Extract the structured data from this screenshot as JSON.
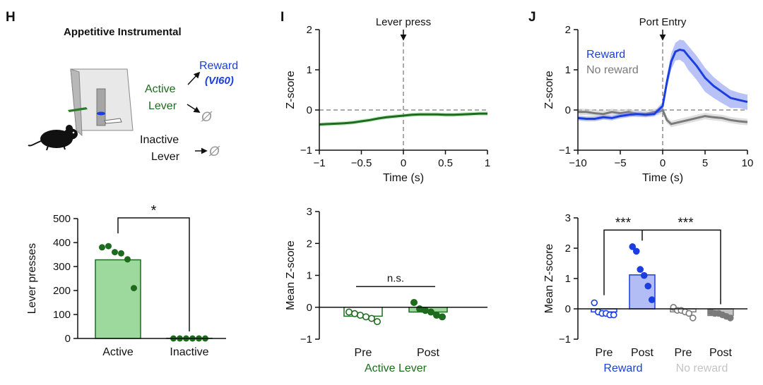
{
  "colors": {
    "green": "#1d6b1d",
    "green_light": "#9dd89d",
    "blue": "#1a3ee0",
    "blue_fill": "#b3bdf5",
    "gray": "#7a7a7a",
    "gray_light": "#c4c4c4",
    "black": "#111111"
  },
  "panel_h": {
    "letter": "H",
    "title": "Appetitive Instrumental",
    "schematic": {
      "reward_label": "Reward",
      "schedule_label": "(VI60)",
      "active_label_1": "Active",
      "active_label_2": "Lever",
      "inactive_label_1": "Inactive",
      "inactive_label_2": "Lever",
      "null_symbol": "Ø",
      "icons": [
        "mouse-icon",
        "operant-box-icon",
        "arrow-icon"
      ]
    }
  },
  "panel_i": {
    "letter": "I"
  },
  "panel_j": {
    "letter": "J"
  },
  "chart_data": [
    {
      "id": "h_bar",
      "type": "bar",
      "categories": [
        "Active",
        "Inactive"
      ],
      "values": [
        328,
        0
      ],
      "points": [
        [
          380,
          385,
          360,
          355,
          330,
          210
        ],
        [
          0,
          0,
          0,
          0,
          0,
          0
        ]
      ],
      "ylabel": "Lever presses",
      "xlabel": "",
      "ylim": [
        0,
        500
      ],
      "yticks": [
        0,
        100,
        200,
        300,
        400,
        500
      ],
      "significance": "*"
    },
    {
      "id": "i_line",
      "type": "line",
      "title": "Lever press",
      "xlabel": "Time (s)",
      "ylabel": "Z-score",
      "xlim": [
        -1,
        1
      ],
      "ylim": [
        -1,
        2
      ],
      "xticks": [
        -1,
        -0.5,
        0,
        0.5,
        1
      ],
      "xtick_labels": [
        "−1",
        "−0.5",
        "0",
        "0.5",
        "1"
      ],
      "yticks": [
        -1,
        0,
        1,
        2
      ],
      "ytick_labels": [
        "−1",
        "0",
        "1",
        "2"
      ],
      "series": [
        {
          "name": "Active Lever",
          "x": [
            -1,
            -0.9,
            -0.8,
            -0.7,
            -0.6,
            -0.5,
            -0.4,
            -0.3,
            -0.2,
            -0.1,
            0,
            0.1,
            0.2,
            0.3,
            0.4,
            0.5,
            0.6,
            0.7,
            0.8,
            0.9,
            1
          ],
          "y": [
            -0.36,
            -0.35,
            -0.34,
            -0.33,
            -0.31,
            -0.28,
            -0.25,
            -0.21,
            -0.18,
            -0.16,
            -0.14,
            -0.12,
            -0.11,
            -0.11,
            -0.11,
            -0.12,
            -0.12,
            -0.11,
            -0.1,
            -0.09,
            -0.09
          ],
          "err": 0.05
        }
      ]
    },
    {
      "id": "i_bar",
      "type": "bar",
      "categories": [
        "Pre",
        "Post"
      ],
      "values": [
        -0.28,
        -0.15
      ],
      "points": [
        [
          -0.15,
          -0.2,
          -0.25,
          -0.3,
          -0.35,
          -0.45
        ],
        [
          0.15,
          -0.05,
          -0.1,
          -0.15,
          -0.25,
          -0.3
        ]
      ],
      "ylabel": "Mean Z-score",
      "group_label": "Active Lever",
      "ylim": [
        -1,
        3
      ],
      "yticks": [
        -1,
        0,
        1,
        2,
        3
      ],
      "ytick_labels": [
        "−1",
        "0",
        "1",
        "2",
        "3"
      ],
      "significance": "n.s."
    },
    {
      "id": "j_line",
      "type": "line",
      "title": "Port Entry",
      "xlabel": "Time (s)",
      "ylabel": "Z-score",
      "xlim": [
        -10,
        10
      ],
      "ylim": [
        -1,
        2
      ],
      "xticks": [
        -10,
        -5,
        0,
        5,
        10
      ],
      "xtick_labels": [
        "−10",
        "−5",
        "0",
        "5",
        "10"
      ],
      "yticks": [
        -1,
        0,
        1,
        2
      ],
      "ytick_labels": [
        "−1",
        "0",
        "1",
        "2"
      ],
      "series": [
        {
          "name": "Reward",
          "x": [
            -10,
            -9,
            -8,
            -7,
            -6,
            -5,
            -4,
            -3,
            -2,
            -1,
            -0.5,
            0,
            0.5,
            1,
            1.5,
            2,
            2.5,
            3,
            4,
            5,
            6,
            7,
            8,
            9,
            10
          ],
          "y": [
            -0.2,
            -0.22,
            -0.22,
            -0.18,
            -0.2,
            -0.15,
            -0.12,
            -0.1,
            -0.12,
            -0.1,
            0.0,
            0.1,
            0.7,
            1.2,
            1.45,
            1.5,
            1.48,
            1.35,
            1.1,
            0.8,
            0.6,
            0.45,
            0.3,
            0.25,
            0.2
          ],
          "err_pos": [
            0.06,
            0.06,
            0.06,
            0.06,
            0.06,
            0.06,
            0.06,
            0.06,
            0.06,
            0.06,
            0.08,
            0.1,
            0.15,
            0.2,
            0.22,
            0.25,
            0.25,
            0.25,
            0.25,
            0.25,
            0.22,
            0.2,
            0.2,
            0.18,
            0.18
          ],
          "err_neg": [
            0.06,
            0.06,
            0.06,
            0.06,
            0.06,
            0.06,
            0.06,
            0.06,
            0.06,
            0.06,
            0.08,
            0.1,
            0.15,
            0.2,
            0.22,
            0.25,
            0.3,
            0.35,
            0.35,
            0.35,
            0.3,
            0.28,
            0.25,
            0.2,
            0.2
          ]
        },
        {
          "name": "No reward",
          "x": [
            -10,
            -9,
            -8,
            -7,
            -6,
            -5,
            -4,
            -3,
            -2,
            -1,
            -0.5,
            0,
            0.5,
            1,
            2,
            3,
            4,
            5,
            6,
            7,
            8,
            9,
            10
          ],
          "y": [
            -0.05,
            -0.05,
            -0.08,
            -0.1,
            -0.05,
            -0.08,
            -0.05,
            -0.1,
            -0.1,
            -0.05,
            -0.05,
            0.0,
            -0.25,
            -0.35,
            -0.3,
            -0.25,
            -0.2,
            -0.15,
            -0.18,
            -0.2,
            -0.25,
            -0.28,
            -0.3
          ],
          "err": 0.08
        }
      ]
    },
    {
      "id": "j_bar",
      "type": "bar",
      "categories": [
        "Pre",
        "Post",
        "Pre",
        "Post"
      ],
      "group_labels": [
        "Reward",
        "No reward"
      ],
      "values": [
        -0.1,
        1.12,
        -0.1,
        -0.22
      ],
      "points": [
        [
          0.2,
          -0.1,
          -0.15,
          -0.15,
          -0.2,
          -0.2
        ],
        [
          2.05,
          1.9,
          1.3,
          1.1,
          0.75,
          0.3
        ],
        [
          0.05,
          -0.05,
          -0.05,
          -0.1,
          -0.15,
          -0.3
        ],
        [
          -0.1,
          -0.15,
          -0.15,
          -0.2,
          -0.25,
          -0.3
        ]
      ],
      "ylabel": "Mean Z-score",
      "ylim": [
        -1,
        3
      ],
      "yticks": [
        -1,
        0,
        1,
        2,
        3
      ],
      "ytick_labels": [
        "−1",
        "0",
        "1",
        "2",
        "3"
      ],
      "significance": [
        "***",
        "***"
      ]
    }
  ]
}
